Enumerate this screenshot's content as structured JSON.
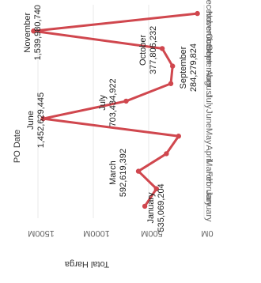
{
  "chart_data": {
    "type": "line",
    "xlabel": "PO Date",
    "ylabel": "Total Harga",
    "ylim": [
      0,
      1700000000
    ],
    "yticks": [
      {
        "value": 1500000000,
        "label": "1500M"
      },
      {
        "value": 1000000000,
        "label": "1000M"
      },
      {
        "value": 500000000,
        "label": "500M"
      },
      {
        "value": 0,
        "label": "0M"
      }
    ],
    "categories": [
      "January",
      "February",
      "March",
      "April",
      "May",
      "June",
      "July",
      "August",
      "September",
      "October",
      "November",
      "December"
    ],
    "series": [
      {
        "values": [
          535069204,
          430000000,
          592619392,
          340000000,
          230000000,
          1452629445,
          703434922,
          300000000,
          284279824,
          377806232,
          1539980740,
          60000000
        ]
      }
    ],
    "annotations": [
      {
        "month": "January",
        "label": "January",
        "value_label": "535,069,204"
      },
      {
        "month": "March",
        "label": "March",
        "value_label": "592,619,392"
      },
      {
        "month": "June",
        "label": "June",
        "value_label": "1,452,629,445"
      },
      {
        "month": "July",
        "label": "July",
        "value_label": "703,434,922"
      },
      {
        "month": "September",
        "label": "September",
        "value_label": "284,279,824"
      },
      {
        "month": "October",
        "label": "October",
        "value_label": "377,806,232"
      },
      {
        "month": "November",
        "label": "November",
        "value_label": "1,539,980,740"
      }
    ],
    "line_color": "#d0474e",
    "grid": true
  }
}
